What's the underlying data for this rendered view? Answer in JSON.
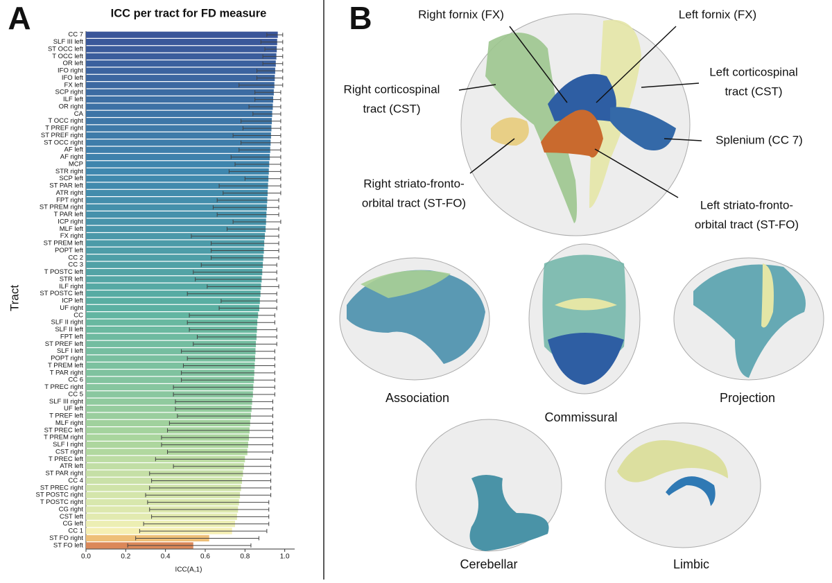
{
  "panel_labels": [
    "A",
    "B"
  ],
  "chart_data": {
    "type": "barh",
    "title": "ICC per tract for FD measure",
    "xlabel": "ICC(A,1)",
    "ylabel": "Tract",
    "categories": [
      "CC 7",
      "SLF III left",
      "ST OCC left",
      "T OCC left",
      "OR left",
      "IFO right",
      "IFO left",
      "FX left",
      "SCP right",
      "ILF left",
      "OR right",
      "CA",
      "T OCC right",
      "T PREF right",
      "ST PREF right",
      "ST OCC right",
      "AF left",
      "AF right",
      "MCP",
      "STR right",
      "SCP left",
      "ST PAR left",
      "ATR right",
      "FPT right",
      "ST PREM right",
      "T PAR left",
      "ICP right",
      "MLF left",
      "FX right",
      "ST PREM left",
      "POPT left",
      "CC 2",
      "CC 3",
      "T POSTC left",
      "STR left",
      "ILF right",
      "ST POSTC left",
      "ICP left",
      "UF right",
      "CC",
      "SLF II right",
      "SLF II left",
      "FPT left",
      "ST PREF left",
      "SLF I left",
      "POPT right",
      "T PREM left",
      "T PAR right",
      "CC 6",
      "T PREC right",
      "CC 5",
      "SLF III right",
      "UF left",
      "T PREF left",
      "MLF right",
      "ST PREC left",
      "T PREM right",
      "SLF I right",
      "CST right",
      "T PREC left",
      "ATR left",
      "ST PAR right",
      "CC 4",
      "ST PREC right",
      "ST POSTC right",
      "T POSTC right",
      "CG right",
      "CST left",
      "CG left",
      "CC 1",
      "ST FO right",
      "ST FO left"
    ],
    "values": [
      0.965,
      0.962,
      0.96,
      0.958,
      0.955,
      0.952,
      0.95,
      0.948,
      0.945,
      0.942,
      0.94,
      0.937,
      0.935,
      0.933,
      0.931,
      0.929,
      0.927,
      0.925,
      0.922,
      0.92,
      0.918,
      0.916,
      0.914,
      0.912,
      0.91,
      0.908,
      0.906,
      0.904,
      0.9,
      0.897,
      0.895,
      0.892,
      0.89,
      0.887,
      0.884,
      0.881,
      0.878,
      0.875,
      0.872,
      0.866,
      0.862,
      0.86,
      0.858,
      0.855,
      0.853,
      0.851,
      0.849,
      0.847,
      0.845,
      0.842,
      0.84,
      0.836,
      0.833,
      0.83,
      0.826,
      0.823,
      0.82,
      0.816,
      0.812,
      0.8,
      0.795,
      0.79,
      0.785,
      0.78,
      0.775,
      0.77,
      0.765,
      0.76,
      0.75,
      0.735,
      0.62,
      0.54
    ],
    "error_low": [
      0.91,
      0.88,
      0.9,
      0.89,
      0.89,
      0.86,
      0.86,
      0.77,
      0.85,
      0.85,
      0.82,
      0.84,
      0.78,
      0.79,
      0.74,
      0.78,
      0.77,
      0.73,
      0.75,
      0.72,
      0.8,
      0.67,
      0.69,
      0.66,
      0.64,
      0.66,
      0.74,
      0.71,
      0.53,
      0.63,
      0.63,
      0.63,
      0.58,
      0.54,
      0.55,
      0.61,
      0.51,
      0.68,
      0.67,
      0.52,
      0.51,
      0.52,
      0.56,
      0.54,
      0.48,
      0.51,
      0.49,
      0.48,
      0.48,
      0.44,
      0.44,
      0.45,
      0.45,
      0.46,
      0.42,
      0.41,
      0.38,
      0.38,
      0.41,
      0.35,
      0.44,
      0.32,
      0.33,
      0.32,
      0.3,
      0.31,
      0.32,
      0.33,
      0.29,
      0.27,
      0.25,
      0.21
    ],
    "error_high": [
      0.99,
      0.99,
      0.99,
      0.99,
      0.99,
      0.99,
      0.99,
      0.99,
      0.98,
      0.98,
      0.98,
      0.98,
      0.98,
      0.98,
      0.98,
      0.98,
      0.98,
      0.98,
      0.98,
      0.98,
      0.98,
      0.98,
      0.98,
      0.97,
      0.97,
      0.97,
      0.98,
      0.97,
      0.97,
      0.97,
      0.97,
      0.97,
      0.96,
      0.96,
      0.96,
      0.97,
      0.96,
      0.96,
      0.96,
      0.95,
      0.95,
      0.96,
      0.96,
      0.96,
      0.95,
      0.95,
      0.95,
      0.95,
      0.95,
      0.95,
      0.95,
      0.94,
      0.94,
      0.94,
      0.94,
      0.94,
      0.94,
      0.94,
      0.94,
      0.93,
      0.93,
      0.93,
      0.93,
      0.93,
      0.93,
      0.92,
      0.92,
      0.92,
      0.92,
      0.91,
      0.87,
      0.83
    ],
    "colormap": [
      {
        "value": 0.54,
        "color": "#db8859"
      },
      {
        "value": 0.62,
        "color": "#eebf78"
      },
      {
        "value": 0.74,
        "color": "#f5f1b6"
      },
      {
        "value": 0.82,
        "color": "#a9d59d"
      },
      {
        "value": 0.87,
        "color": "#5cb2a1"
      },
      {
        "value": 0.92,
        "color": "#3f87ae"
      },
      {
        "value": 0.965,
        "color": "#3a5599"
      }
    ],
    "xlim": [
      0,
      1.05
    ],
    "xticks": [
      {
        "value": 0,
        "label": "0.0"
      },
      0.2,
      0.4,
      0.6,
      0.8,
      {
        "value": 1,
        "label": "1.0"
      }
    ]
  },
  "panel_b": {
    "annotations": [
      {
        "lines": [
          "Right fornix (FX)"
        ]
      },
      {
        "lines": [
          "Left fornix (FX)"
        ]
      },
      {
        "lines": [
          "Right corticospinal",
          "tract (CST)"
        ]
      },
      {
        "lines": [
          "Left corticospinal",
          "tract (CST)"
        ]
      },
      {
        "lines": [
          "Splenium (CC 7)"
        ]
      },
      {
        "lines": [
          "Right striato-fronto-",
          "orbital tract (ST-FO)"
        ]
      },
      {
        "lines": [
          "Left striato-fronto-",
          "orbital tract (ST-FO)"
        ]
      }
    ],
    "views": [
      "Association",
      "Commissural",
      "Projection",
      "Cerebellar",
      "Limbic"
    ]
  }
}
